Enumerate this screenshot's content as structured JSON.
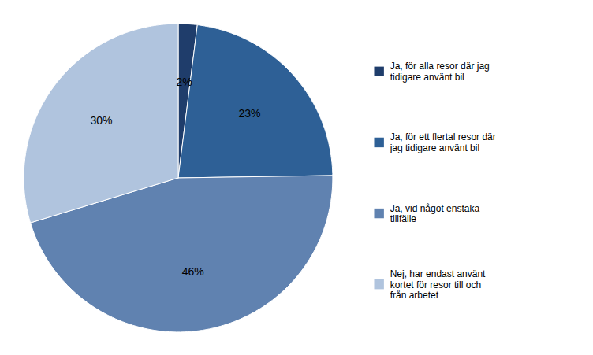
{
  "chart_data": {
    "type": "pie",
    "categories": [
      "Ja, för alla resor där jag\ntidigare använt bil",
      "Ja, för ett flertal resor där\njag tidigare använt bil",
      "Ja, vid något enstaka\ntillfälle",
      "Nej, har endast använt\nkortet för resor till och\nfrån arbetet"
    ],
    "values": [
      2,
      23,
      46,
      30
    ],
    "value_labels": [
      "2%",
      "23%",
      "46%",
      "30%"
    ],
    "colors": [
      "#1F3D6B",
      "#2E6096",
      "#6082B0",
      "#B0C4DE"
    ],
    "data_labels": true,
    "legend": "right"
  }
}
